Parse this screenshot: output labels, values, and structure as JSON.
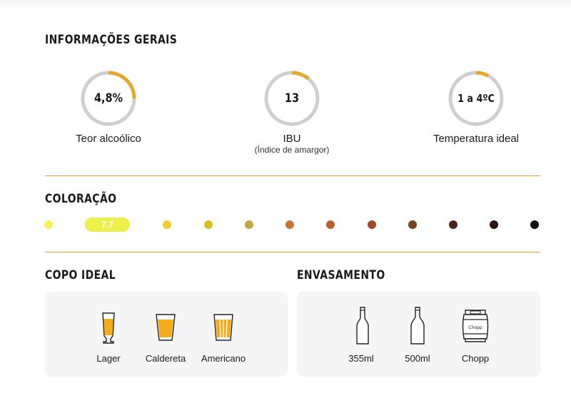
{
  "sections": {
    "general": "INFORMAÇÕES GERAIS",
    "color": "COLORAÇÃO",
    "glass": "COPO IDEAL",
    "packaging": "ENVASAMENTO"
  },
  "gauges": [
    {
      "value": "4,8%",
      "label": "Teor alcoólico",
      "sublabel": "",
      "fill_fraction": 0.25
    },
    {
      "value": "13",
      "label": "IBU",
      "sublabel": "(Índice de amargor)",
      "fill_fraction": 0.11
    },
    {
      "value": "1 a 4ºC",
      "label": "Temperatura ideal",
      "sublabel": "",
      "fill_fraction": 0.08
    }
  ],
  "coloration": {
    "selected_label": "7.7",
    "selected_index": 1,
    "selected_color": "#eef04a",
    "swatches": [
      "#f6f35a",
      "#eef04a",
      "#f2cf2e",
      "#d8c024",
      "#c4a540",
      "#c77430",
      "#b8602c",
      "#9e4a28",
      "#7a4020",
      "#4a2418",
      "#2b1612",
      "#151010"
    ]
  },
  "glasses": [
    {
      "icon": "lager-glass-icon",
      "label": "Lager"
    },
    {
      "icon": "caldereta-glass-icon",
      "label": "Caldereta"
    },
    {
      "icon": "americano-glass-icon",
      "label": "Americano"
    }
  ],
  "packaging": [
    {
      "icon": "bottle-355-icon",
      "label": "355ml"
    },
    {
      "icon": "bottle-500-icon",
      "label": "500ml"
    },
    {
      "icon": "keg-icon",
      "label": "Chopp",
      "icon_text": "Chopp"
    }
  ],
  "colors": {
    "accent": "#e6a82a",
    "track": "#cfcfcf",
    "beer": "#f4ac1c",
    "card_bg": "#f5f5f5"
  }
}
